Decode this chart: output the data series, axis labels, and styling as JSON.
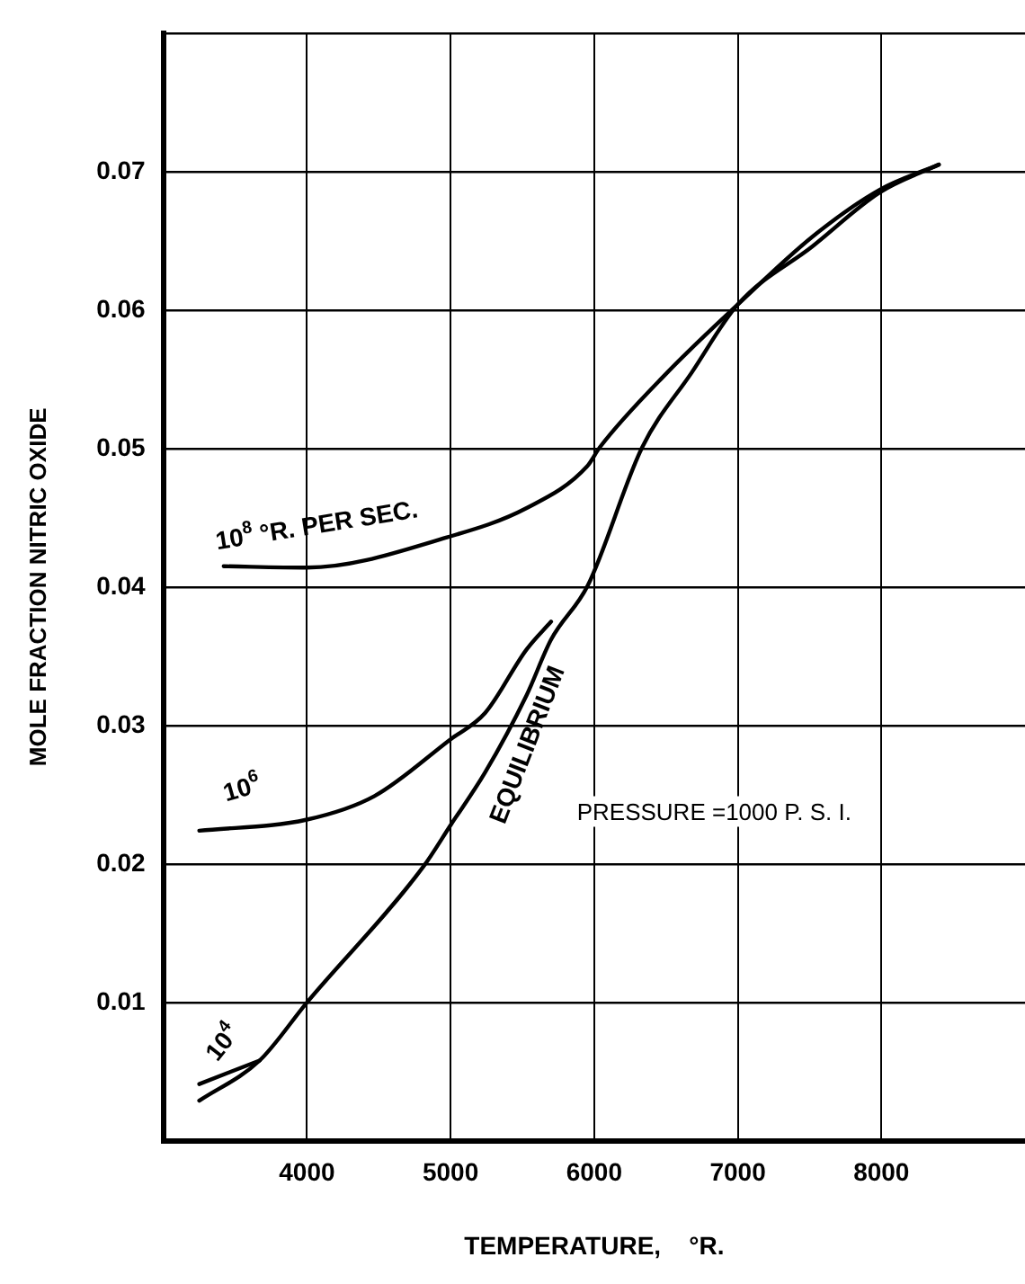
{
  "chart_data": {
    "type": "line",
    "xlabel": "TEMPERATURE,    °R.",
    "ylabel": "MOLE FRACTION NITRIC OXIDE",
    "xlim": [
      3000,
      9000
    ],
    "xticks": [
      4000,
      5000,
      6000,
      7000,
      8000
    ],
    "ylim": [
      0,
      0.08
    ],
    "yticks": [
      {
        "value": 0,
        "label": null
      },
      0.01,
      0.02,
      0.03,
      0.04,
      0.05,
      0.06,
      0.07,
      {
        "value": 0.08,
        "label": null
      }
    ],
    "grid": true,
    "legend": false,
    "marker": "none",
    "line_style": "solid",
    "series": [
      {
        "name": "10$^{8}$ °R. PER SEC.",
        "color": "#000000",
        "x": [
          3420,
          4000,
          4980,
          5530,
          5950,
          6040,
          6510,
          7000,
          7520,
          7990,
          8400
        ],
        "values": [
          0.0415,
          0.0414,
          0.0436,
          0.0457,
          0.0487,
          0.0501,
          0.0555,
          0.0604,
          0.0653,
          0.0687,
          0.0705
        ]
      },
      {
        "name": "10$^{6}$",
        "color": "#000000",
        "x": [
          3250,
          4000,
          4470,
          5000,
          5240,
          5530,
          5700
        ],
        "values": [
          0.0224,
          0.0232,
          0.0249,
          0.029,
          0.0309,
          0.0355,
          0.0375
        ]
      },
      {
        "name": "10$^{4}$",
        "color": "#000000",
        "x": [
          3250,
          3670
        ],
        "values": [
          0.0041,
          0.0058
        ]
      },
      {
        "name": "EQUILIBRIUM",
        "color": "#000000",
        "x": [
          3250,
          3670,
          4000,
          4810,
          5000,
          5240,
          5530,
          5700,
          5955,
          6335,
          6680,
          7000,
          7520,
          7990,
          8400
        ],
        "values": [
          0.0029,
          0.0058,
          0.01,
          0.0198,
          0.0228,
          0.0266,
          0.0322,
          0.0362,
          0.0401,
          0.0501,
          0.0555,
          0.0604,
          0.0646,
          0.0685,
          0.0705
        ]
      }
    ],
    "annotations": [
      "PRESSURE =1000 P. S. I."
    ]
  }
}
